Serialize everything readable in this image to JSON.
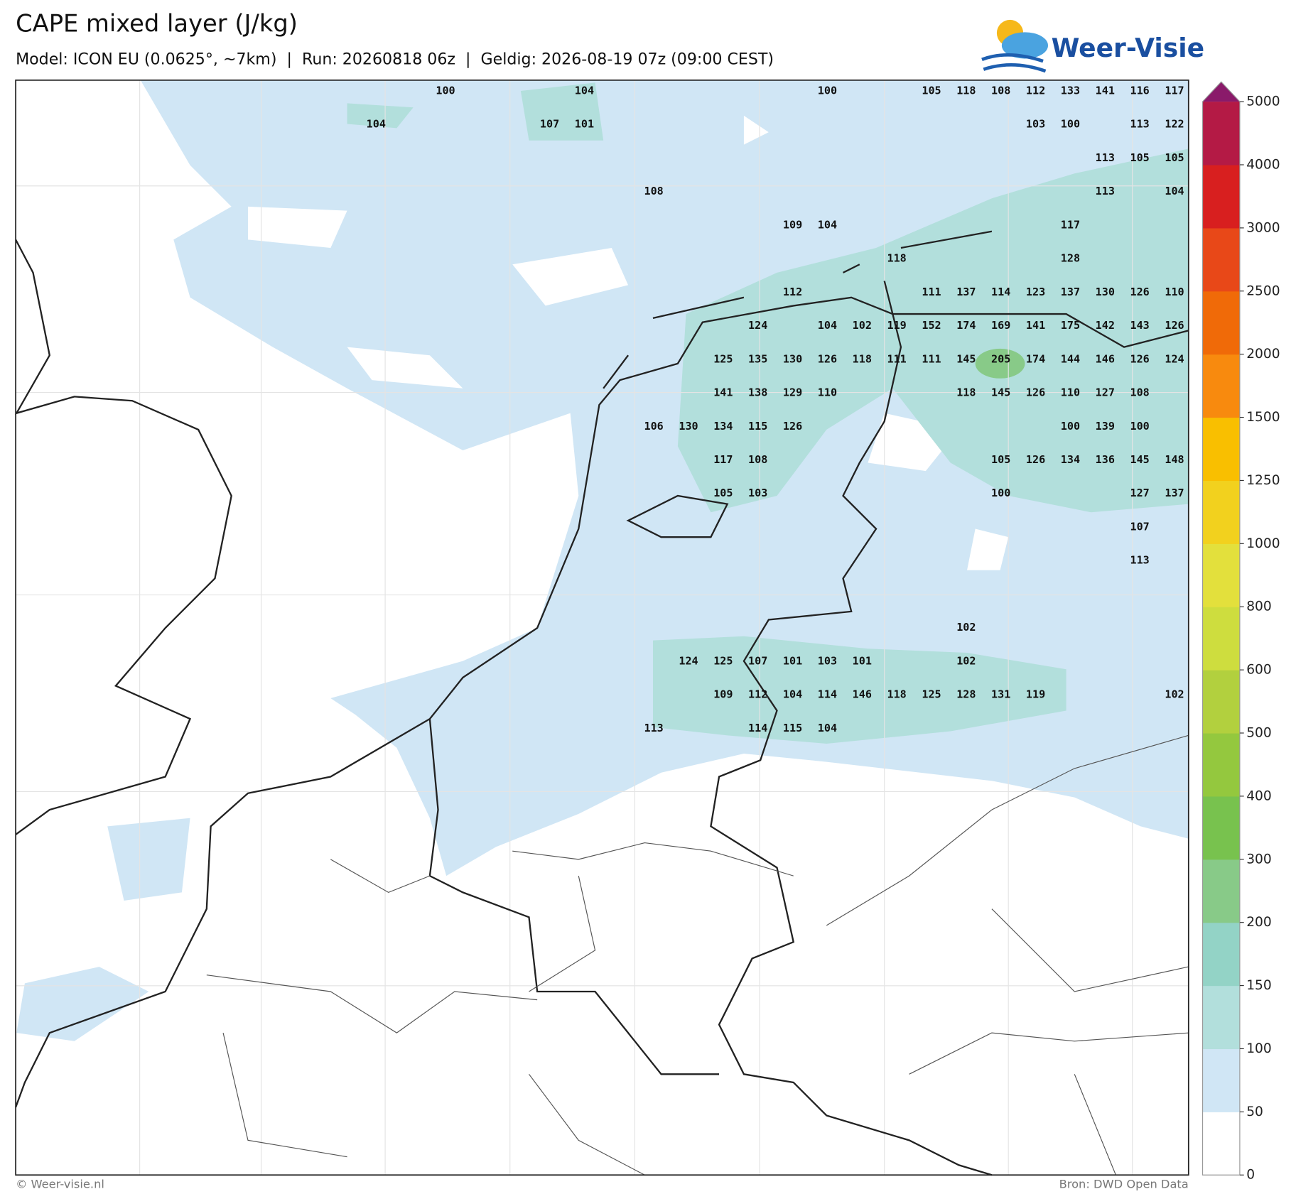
{
  "header": {
    "title": "CAPE mixed layer (J/kg)",
    "subtitle": "Model: ICON EU (0.0625°, ~7km)  |  Run: 20260818 06z  |  Geldig: 2026-08-19 07z (09:00 CEST)",
    "logo": "Weer-Visie"
  },
  "map": {
    "labels": [
      100,
      104,
      100,
      105,
      118,
      108,
      112,
      133,
      141,
      116,
      117,
      104,
      107,
      101,
      103,
      100,
      113,
      122,
      113,
      105,
      105,
      108,
      113,
      104,
      109,
      104,
      117,
      118,
      128,
      112,
      111,
      137,
      114,
      123,
      137,
      130,
      126,
      110,
      124,
      104,
      102,
      119,
      152,
      174,
      169,
      141,
      175,
      142,
      143,
      126,
      125,
      135,
      130,
      126,
      118,
      111,
      111,
      145,
      205,
      174,
      144,
      146,
      126,
      124,
      141,
      138,
      129,
      110,
      118,
      145,
      126,
      110,
      127,
      108,
      106,
      130,
      134,
      115,
      126,
      100,
      139,
      100,
      117,
      108,
      105,
      126,
      134,
      136,
      145,
      148,
      105,
      103,
      100,
      127,
      137,
      107,
      113,
      102,
      124,
      125,
      107,
      101,
      103,
      101,
      102,
      109,
      112,
      104,
      114,
      146,
      118,
      125,
      128,
      131,
      119,
      102,
      113,
      114,
      115,
      104
    ]
  },
  "colorbar": {
    "ticks": [
      0,
      50,
      100,
      150,
      200,
      300,
      400,
      500,
      600,
      800,
      1000,
      1250,
      1500,
      2000,
      2500,
      3000,
      4000,
      5000
    ],
    "colors": [
      "#ffffff",
      "#d0e6f5",
      "#b2dfdc",
      "#93d3c6",
      "#88ca88",
      "#78c24e",
      "#94c83e",
      "#b2d03e",
      "#cedd3e",
      "#e3e03c",
      "#f2d11e",
      "#f9bf00",
      "#f88a0e",
      "#f06a08",
      "#e84818",
      "#d81f1f",
      "#b41a45"
    ],
    "extend_color": "#8a1a6a"
  },
  "footer": {
    "left": "© Weer-visie.nl",
    "right": "Bron: DWD Open Data"
  }
}
